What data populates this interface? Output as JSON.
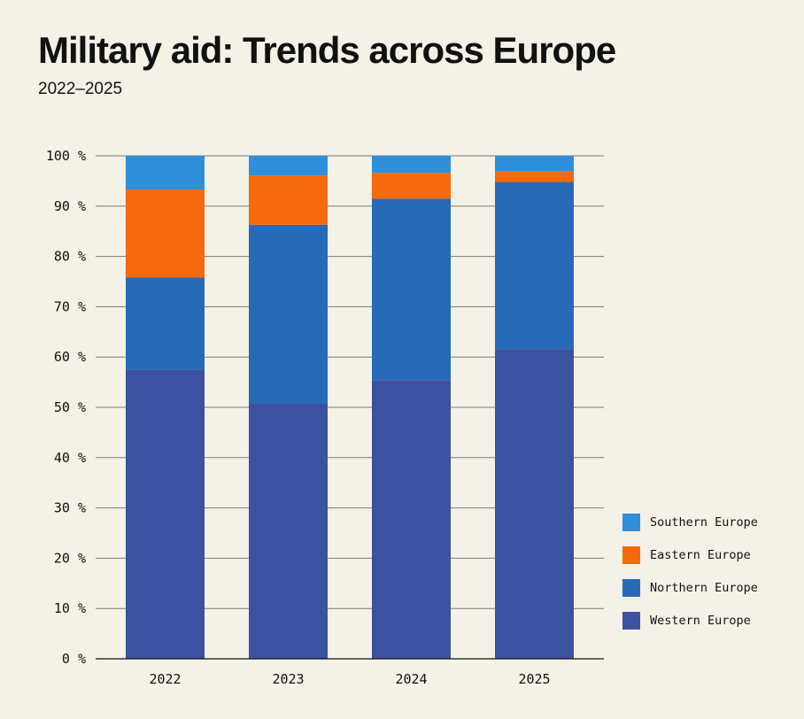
{
  "title": "Military aid: Trends across Europe",
  "subtitle": "2022–2025",
  "chart_data": {
    "type": "bar",
    "stacked": true,
    "categories": [
      "2022",
      "2023",
      "2024",
      "2025"
    ],
    "series": [
      {
        "name": "Western Europe",
        "color": "#3c52a0",
        "values": [
          57.5,
          50.7,
          55.4,
          61.6
        ]
      },
      {
        "name": "Northern Europe",
        "color": "#276bb8",
        "values": [
          18.3,
          35.6,
          36.1,
          33.2
        ]
      },
      {
        "name": "Eastern Europe",
        "color": "#f46a0c",
        "values": [
          17.5,
          9.8,
          5.1,
          2.2
        ]
      },
      {
        "name": "Southern Europe",
        "color": "#2f8fd8",
        "values": [
          6.7,
          3.9,
          3.4,
          3.0
        ]
      }
    ],
    "y_ticks": [
      "0 %",
      "10 %",
      "20 %",
      "30 %",
      "40 %",
      "50 %",
      "60 %",
      "70 %",
      "80 %",
      "90 %",
      "100 %"
    ],
    "ylim": [
      0,
      100
    ],
    "grid": true,
    "legend_position": "bottom-right"
  }
}
